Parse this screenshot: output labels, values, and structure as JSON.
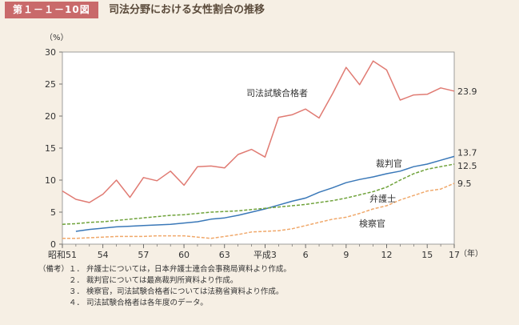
{
  "figure": {
    "number": "第１－１－10図",
    "title": "司法分野における女性割合の推移"
  },
  "chart_data": {
    "type": "line",
    "ylabel": "（%）",
    "xlabel": "（年）",
    "ylim": [
      0,
      30
    ],
    "yticks": [
      0,
      5,
      10,
      15,
      20,
      25,
      30
    ],
    "x": [
      51,
      52,
      53,
      54,
      55,
      56,
      57,
      58,
      59,
      60,
      61,
      62,
      63,
      64,
      65,
      66,
      67,
      68,
      69,
      70,
      71,
      72,
      73,
      74,
      75,
      76,
      77,
      78,
      79,
      80
    ],
    "xtick_labels": [
      {
        "x": 51,
        "label": "昭和51"
      },
      {
        "x": 54,
        "label": "54"
      },
      {
        "x": 57,
        "label": "57"
      },
      {
        "x": 60,
        "label": "60"
      },
      {
        "x": 63,
        "label": "63"
      },
      {
        "x": 66,
        "label": "平成3"
      },
      {
        "x": 69,
        "label": "6"
      },
      {
        "x": 72,
        "label": "9"
      },
      {
        "x": 75,
        "label": "12"
      },
      {
        "x": 78,
        "label": "15"
      },
      {
        "x": 80,
        "label": "17"
      }
    ],
    "series": [
      {
        "name": "司法試験合格者",
        "color": "#e07a72",
        "values": [
          8.3,
          7.0,
          6.5,
          7.8,
          10.0,
          7.3,
          10.4,
          9.9,
          11.4,
          9.2,
          12.1,
          12.2,
          11.9,
          14.0,
          14.8,
          13.6,
          19.8,
          20.2,
          21.1,
          19.7,
          23.5,
          27.6,
          24.9,
          28.6,
          27.2,
          22.5,
          23.3,
          23.4,
          24.4,
          23.9
        ],
        "end_label": "23.9"
      },
      {
        "name": "裁判官",
        "color": "#3a78b8",
        "values": [
          null,
          2.0,
          2.3,
          2.5,
          2.7,
          2.8,
          2.9,
          3.0,
          3.1,
          3.3,
          3.5,
          3.9,
          4.1,
          4.5,
          5.0,
          5.5,
          6.1,
          6.7,
          7.2,
          8.1,
          8.8,
          9.6,
          10.1,
          10.5,
          11.0,
          11.4,
          12.1,
          12.5,
          13.1,
          13.7
        ],
        "end_label": "13.7"
      },
      {
        "name": "弁護士",
        "color": "#6fa23a",
        "dashed": true,
        "values": [
          3.1,
          3.2,
          3.4,
          3.5,
          3.7,
          3.9,
          4.1,
          4.3,
          4.5,
          4.6,
          4.8,
          5.0,
          5.1,
          5.2,
          5.4,
          5.6,
          5.8,
          6.0,
          6.2,
          6.5,
          6.8,
          7.2,
          7.7,
          8.2,
          8.9,
          10.0,
          11.0,
          11.7,
          12.1,
          12.5
        ],
        "end_label": "12.5"
      },
      {
        "name": "検察官",
        "color": "#f0a86a",
        "dashed": true,
        "values": [
          0.9,
          0.9,
          1.0,
          1.1,
          1.2,
          1.2,
          1.2,
          1.3,
          1.3,
          1.3,
          1.1,
          0.9,
          1.2,
          1.5,
          1.9,
          2.0,
          2.1,
          2.4,
          2.9,
          3.4,
          3.9,
          4.2,
          4.8,
          5.5,
          6.0,
          6.9,
          7.6,
          8.3,
          8.6,
          9.5
        ],
        "end_label": "9.5"
      }
    ]
  },
  "notes": {
    "label": "（備考）",
    "items": [
      "弁護士については，日本弁護士連合会事務局資料より作成。",
      "裁判官については最高裁判所資料より作成。",
      "検察官，司法試験合格者については法務省資料より作成。",
      "司法試験合格者は各年度のデータ。"
    ],
    "indices": [
      "１．",
      "２．",
      "３．",
      "４．"
    ]
  }
}
